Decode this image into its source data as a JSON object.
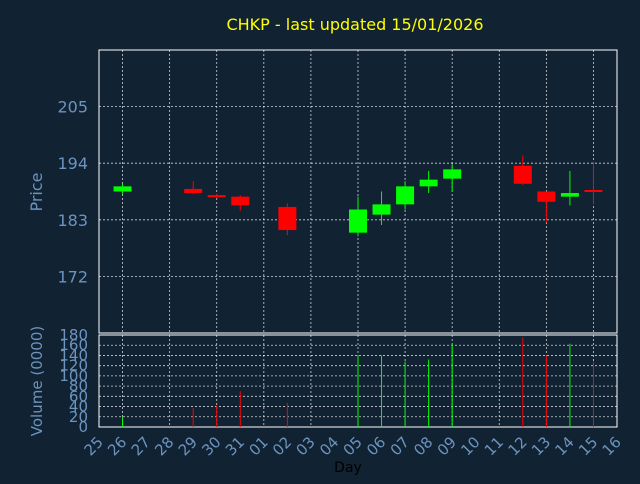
{
  "colors": {
    "background": "#112233",
    "plot_border": "#ffffff",
    "grid": "#ffffff",
    "title": "#ffff00",
    "axis_text": "#6c94bf",
    "up": "#00ff00",
    "down": "#ff0000"
  },
  "chart_data": {
    "type": "candlestick",
    "title": "CHKP - last updated 15/01/2026",
    "xlabel": "Day",
    "grid": true,
    "x_ticks": [
      "25",
      "26",
      "27",
      "28",
      "29",
      "30",
      "31",
      "01",
      "02",
      "03",
      "04",
      "05",
      "06",
      "07",
      "08",
      "09",
      "10",
      "11",
      "12",
      "13",
      "14",
      "15",
      "16"
    ],
    "price_panel": {
      "ylabel": "Price",
      "ylim": [
        161,
        216
      ],
      "yticks": [
        172,
        183,
        194,
        205
      ],
      "candles": [
        {
          "day": "26",
          "open": 188.5,
          "high": 190.0,
          "low": 188.0,
          "close": 189.5
        },
        {
          "day": "29",
          "open": 189.0,
          "high": 190.5,
          "low": 188.0,
          "close": 188.2
        },
        {
          "day": "30",
          "open": 187.8,
          "high": 188.0,
          "low": 187.2,
          "close": 187.5
        },
        {
          "day": "31",
          "open": 187.5,
          "high": 187.8,
          "low": 184.8,
          "close": 185.8
        },
        {
          "day": "02",
          "open": 185.5,
          "high": 186.2,
          "low": 180.0,
          "close": 181.0
        },
        {
          "day": "05",
          "open": 180.5,
          "high": 187.5,
          "low": 179.8,
          "close": 185.0
        },
        {
          "day": "06",
          "open": 184.0,
          "high": 188.5,
          "low": 182.0,
          "close": 186.0
        },
        {
          "day": "07",
          "open": 186.0,
          "high": 190.5,
          "low": 185.0,
          "close": 189.5
        },
        {
          "day": "08",
          "open": 189.5,
          "high": 192.5,
          "low": 188.2,
          "close": 190.8
        },
        {
          "day": "09",
          "open": 191.0,
          "high": 193.8,
          "low": 188.5,
          "close": 192.8
        },
        {
          "day": "12",
          "open": 193.5,
          "high": 195.5,
          "low": 189.8,
          "close": 190.0
        },
        {
          "day": "13",
          "open": 188.5,
          "high": 188.5,
          "low": 182.5,
          "close": 186.5
        },
        {
          "day": "14",
          "open": 187.5,
          "high": 192.5,
          "low": 185.8,
          "close": 188.2
        },
        {
          "day": "15",
          "open": 188.8,
          "high": 194.2,
          "low": 186.0,
          "close": 188.5
        }
      ]
    },
    "volume_panel": {
      "ylabel": "Volume (0000)",
      "ylim": [
        0,
        180
      ],
      "yticks": [
        0,
        20,
        40,
        60,
        80,
        100,
        120,
        140,
        160,
        180
      ],
      "bars": [
        {
          "day": "26",
          "value": 20,
          "dir": "up"
        },
        {
          "day": "29",
          "value": 37,
          "dir": "down"
        },
        {
          "day": "30",
          "value": 42,
          "dir": "down"
        },
        {
          "day": "31",
          "value": 70,
          "dir": "down"
        },
        {
          "day": "02",
          "value": 47,
          "dir": "down"
        },
        {
          "day": "05",
          "value": 140,
          "dir": "up"
        },
        {
          "day": "06",
          "value": 140,
          "dir": "up"
        },
        {
          "day": "07",
          "value": 128,
          "dir": "up"
        },
        {
          "day": "08",
          "value": 132,
          "dir": "up"
        },
        {
          "day": "09",
          "value": 163,
          "dir": "up"
        },
        {
          "day": "12",
          "value": 175,
          "dir": "down"
        },
        {
          "day": "13",
          "value": 140,
          "dir": "down"
        },
        {
          "day": "14",
          "value": 163,
          "dir": "up"
        },
        {
          "day": "15",
          "value": 128,
          "dir": "down"
        }
      ]
    }
  }
}
